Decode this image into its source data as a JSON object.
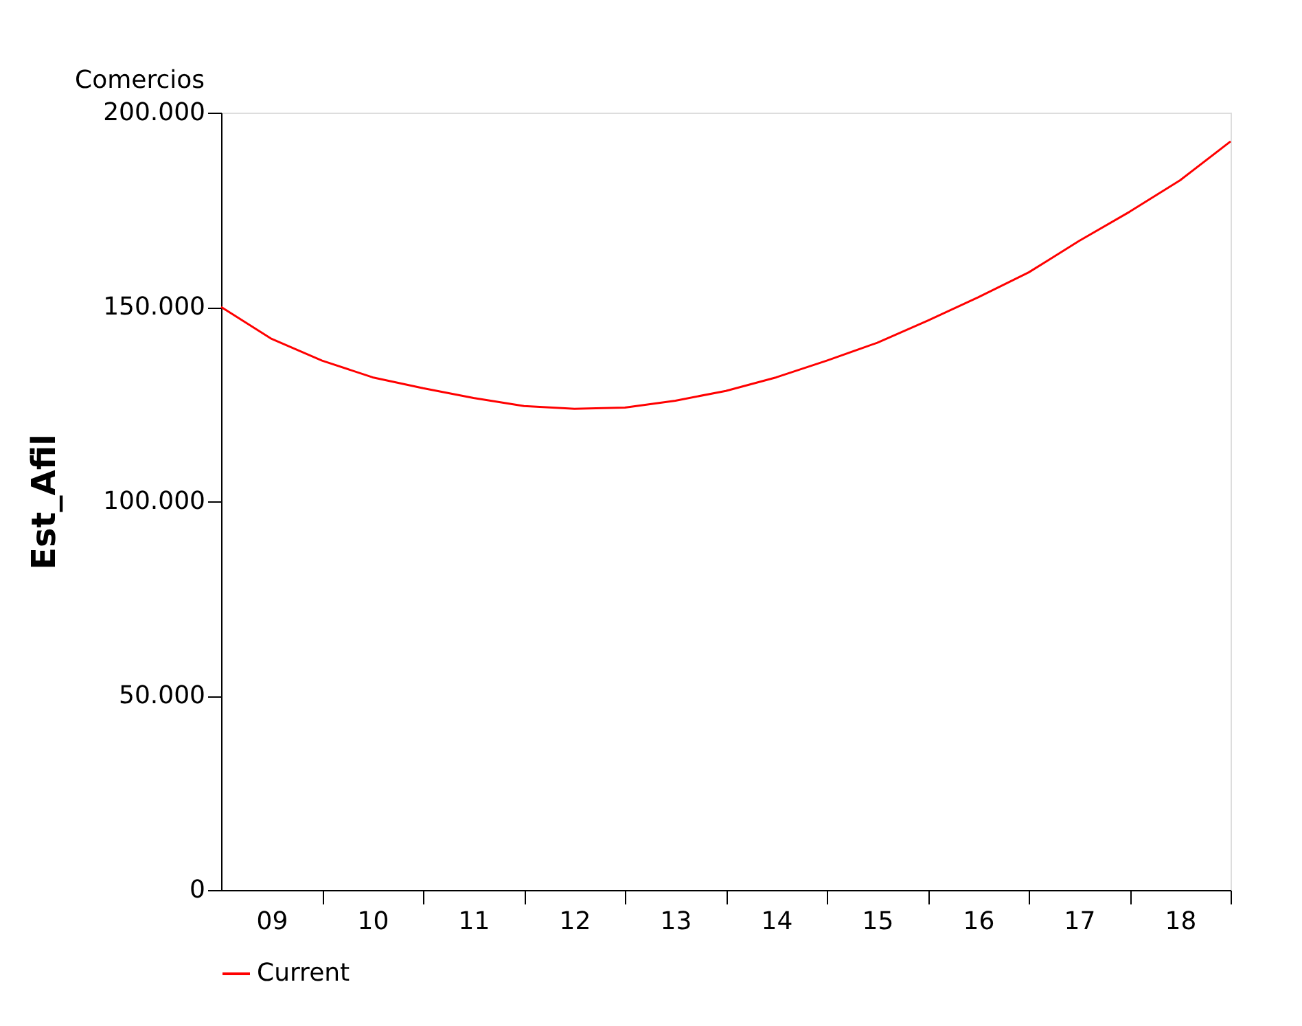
{
  "chart_data": {
    "type": "line",
    "ylabel": "Est_Afil",
    "annotations": [
      "Comercios"
    ],
    "xlim": [
      8.5,
      18.5
    ],
    "xticks": [
      {
        "value": 9,
        "label": "09"
      },
      {
        "value": 9.5,
        "label": null
      },
      10,
      {
        "value": 10.5,
        "label": null
      },
      11,
      {
        "value": 11.5,
        "label": null
      },
      12,
      {
        "value": 12.5,
        "label": null
      },
      13,
      {
        "value": 13.5,
        "label": null
      },
      14,
      {
        "value": 14.5,
        "label": null
      },
      15,
      {
        "value": 15.5,
        "label": null
      },
      16,
      {
        "value": 16.5,
        "label": null
      },
      17,
      {
        "value": 17.5,
        "label": null
      },
      18,
      {
        "value": 18.5,
        "label": null
      }
    ],
    "ylim": [
      0,
      200000
    ],
    "yticks": [
      0,
      {
        "value": 50000,
        "label": "50.000"
      },
      {
        "value": 100000,
        "label": "100.000"
      },
      {
        "value": 150000,
        "label": "150.000"
      },
      {
        "value": 200000,
        "label": "200.000"
      }
    ],
    "grid": false,
    "legend": "bottom",
    "series": [
      {
        "name": "Current",
        "color": "#ff0000",
        "x": [
          8.5,
          9,
          9.5,
          10,
          10.5,
          11,
          11.5,
          12,
          12.5,
          13,
          13.5,
          14,
          14.5,
          15,
          15.5,
          16,
          16.5,
          17,
          17.5,
          18,
          18.5
        ],
        "values": [
          150000,
          141800,
          136200,
          131900,
          129100,
          126600,
          124500,
          123800,
          124100,
          125900,
          128400,
          131900,
          136200,
          140800,
          146500,
          152500,
          158900,
          167000,
          174500,
          182600,
          192600
        ]
      }
    ]
  }
}
